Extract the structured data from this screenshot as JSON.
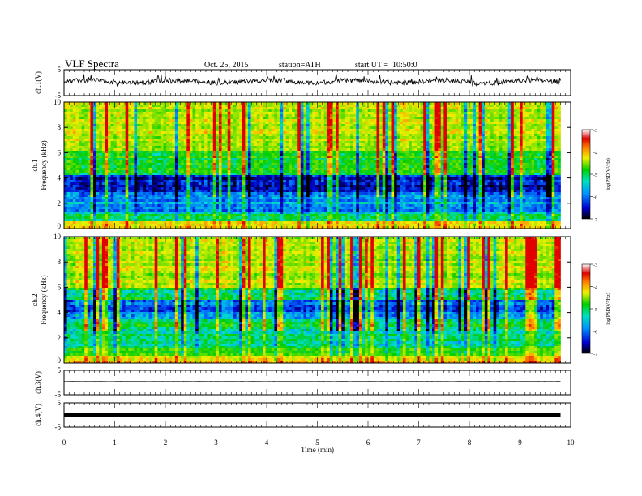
{
  "header": {
    "title": "VLF Spectra",
    "date": "Oct. 25, 2015",
    "station": "station=ATH",
    "start": "start UT =  10:50:0"
  },
  "chart_data": [
    {
      "type": "line",
      "panel": "ch1-waveform",
      "ylabel": "ch.1(V)",
      "ylim": [
        -5,
        5
      ],
      "yticks": [
        "5",
        "-5"
      ],
      "xlim": [
        0,
        10
      ],
      "x_end": 9.8,
      "baseline": 0.4
    },
    {
      "type": "heatmap",
      "panel": "ch1-spectrogram",
      "ylabel": "ch.1\nFrequency (kHz)",
      "ylim": [
        0,
        10
      ],
      "yticks": [
        "0",
        "2",
        "4",
        "6",
        "8",
        "10"
      ],
      "xlim": [
        0,
        10
      ],
      "x_end": 9.8,
      "colorbar": {
        "label": "log(PSD(V²/Hz)",
        "range": [
          -7,
          -3
        ],
        "ticks": [
          "-3",
          "-4",
          "-5",
          "-6",
          "-7"
        ]
      }
    },
    {
      "type": "heatmap",
      "panel": "ch2-spectrogram",
      "ylabel": "ch.2\nFrequency (kHz)",
      "ylim": [
        0,
        10
      ],
      "yticks": [
        "0",
        "2",
        "4",
        "6",
        "8",
        "10"
      ],
      "xlim": [
        0,
        10
      ],
      "x_end": 9.8,
      "colorbar": {
        "label": "log(PSD(V²/Hz)",
        "range": [
          -7,
          -3
        ],
        "ticks": [
          "-3",
          "-4",
          "-5",
          "-6",
          "-7"
        ]
      }
    },
    {
      "type": "line",
      "panel": "ch3-waveform",
      "ylabel": "ch.3(V)",
      "ylim": [
        -5,
        5
      ],
      "yticks": [
        "5",
        "-5"
      ],
      "xlim": [
        0,
        10
      ],
      "x_end": 9.8,
      "baseline": 0.5
    },
    {
      "type": "line",
      "panel": "ch4-waveform",
      "ylabel": "ch.4(V)",
      "ylim": [
        -5,
        5
      ],
      "yticks": [
        "5",
        "-5"
      ],
      "xlim": [
        0,
        10
      ],
      "x_end": 9.8,
      "baseline": 0.1
    }
  ],
  "xaxis": {
    "label": "Time (min)",
    "ticks": [
      "0",
      "1",
      "2",
      "3",
      "4",
      "5",
      "6",
      "7",
      "8",
      "9",
      "10"
    ]
  }
}
